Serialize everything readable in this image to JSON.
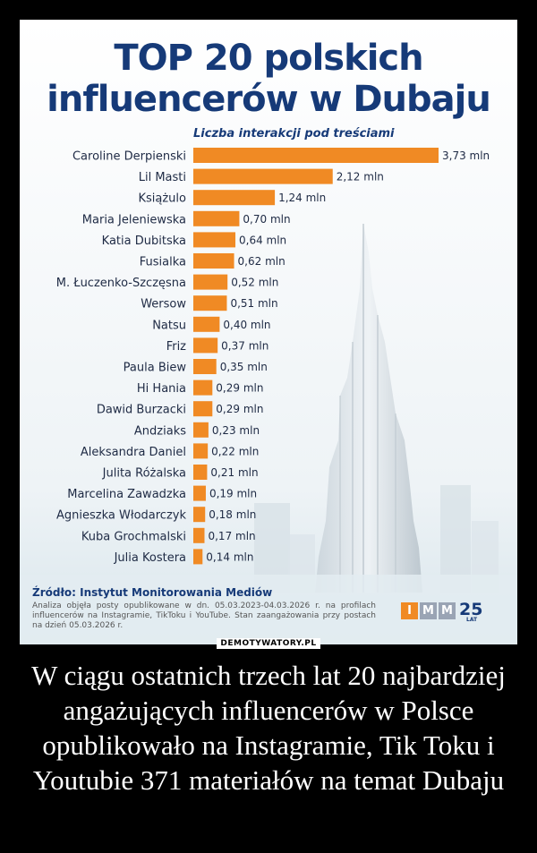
{
  "card": {
    "title_line1": "TOP 20 polskich",
    "title_line2": "influencerów w Dubaju",
    "source_title": "Źródło: Instytut Monitorowania Mediów",
    "source_text": "Analiza objęła posty opublikowane w dn. 05.03.2023-04.03.2026 r. na profilach influencerów na Instagramie, TikToku i YouTube. Stan zaangażowania przy postach na dzień 05.03.2026 r.",
    "logo": {
      "letters": [
        "I",
        "M",
        "M"
      ],
      "years": "25",
      "years_label": "LAT"
    }
  },
  "watermark": "DEMOTYWATORY.PL",
  "caption": "W ciągu ostatnich trzech lat 20 najbardziej angażujących influencerów w Polsce opublikowało na Instagramie, Tik Toku i Youtubie 371 materiałów na temat Dubaju",
  "colors": {
    "bar": "#f08a24",
    "title": "#163a78",
    "background": "#ffffff"
  },
  "chart_data": {
    "type": "bar",
    "orientation": "horizontal",
    "title": "Liczba interakcji pod treściami",
    "unit": "mln",
    "categories": [
      "Caroline Derpienski",
      "Lil Masti",
      "Książulo",
      "Maria Jeleniewska",
      "Katia Dubitska",
      "Fusialka",
      "M. Łuczenko-Szczęsna",
      "Wersow",
      "Natsu",
      "Friz",
      "Paula Biew",
      "Hi Hania",
      "Dawid Burzacki",
      "Andziaks",
      "Aleksandra Daniel",
      "Julita Różalska",
      "Marcelina Zawadzka",
      "Agnieszka Włodarczyk",
      "Kuba Grochmalski",
      "Julia Kostera"
    ],
    "values": [
      3.73,
      2.12,
      1.24,
      0.7,
      0.64,
      0.62,
      0.52,
      0.51,
      0.4,
      0.37,
      0.35,
      0.29,
      0.29,
      0.23,
      0.22,
      0.21,
      0.19,
      0.18,
      0.17,
      0.14
    ],
    "value_labels": [
      "3,73 mln",
      "2,12 mln",
      "1,24 mln",
      "0,70 mln",
      "0,64 mln",
      "0,62 mln",
      "0,52 mln",
      "0,51 mln",
      "0,40 mln",
      "0,37 mln",
      "0,35 mln",
      "0,29 mln",
      "0,29 mln",
      "0,23 mln",
      "0,22 mln",
      "0,21 mln",
      "0,19 mln",
      "0,18 mln",
      "0,17 mln",
      "0,14 mln"
    ],
    "grid": false,
    "legend": "none"
  }
}
